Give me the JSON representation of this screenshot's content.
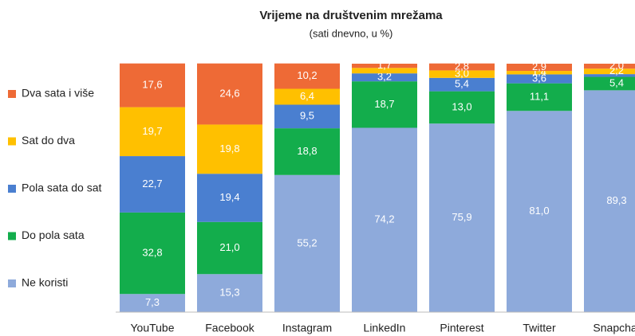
{
  "chart_data": {
    "type": "stacked_bar",
    "title": "Vrijeme na društvenim mrežama",
    "subtitle": "(sati dnevno, u %)",
    "categories": [
      "YouTube",
      "Facebook",
      "Instagram",
      "LinkedIn",
      "Pinterest",
      "Twitter",
      "Snapchat"
    ],
    "ylim": [
      0,
      100
    ],
    "legend": "left",
    "series": [
      {
        "name": "Ne koristi",
        "color": "#8eaadb",
        "values": [
          7.3,
          15.3,
          55.2,
          74.2,
          75.9,
          81.0,
          89.3
        ],
        "value_labels": [
          "7,3",
          "15,3",
          "55,2",
          "74,2",
          "75,9",
          "81,0",
          "89,3"
        ]
      },
      {
        "name": "Do pola sata",
        "color": "#13ad4c",
        "values": [
          32.8,
          21.0,
          18.8,
          18.7,
          13.0,
          11.1,
          5.4
        ],
        "value_labels": [
          "32,8",
          "21,0",
          "18,8",
          "18,7",
          "13,0",
          "11,1",
          "5,4"
        ]
      },
      {
        "name": "Pola sata do sat",
        "color": "#4a7fd0",
        "values": [
          22.7,
          19.4,
          9.5,
          3.2,
          5.4,
          3.6,
          1.1
        ],
        "value_labels": [
          "22,7",
          "19,4",
          "9,5",
          "3,2",
          "5,4",
          "3,6",
          null
        ]
      },
      {
        "name": "Sat do dva",
        "color": "#ffc000",
        "values": [
          19.7,
          19.8,
          6.4,
          2.2,
          3.0,
          1.4,
          2.2
        ],
        "value_labels": [
          "19,7",
          "19,8",
          "6,4",
          null,
          "3,0",
          "1,4",
          "2,2"
        ]
      },
      {
        "name": "Dva sata i više",
        "color": "#ee6a36",
        "values": [
          17.6,
          24.6,
          10.2,
          1.7,
          2.8,
          2.9,
          2.0
        ],
        "value_labels": [
          "17,6",
          "24,6",
          "10,2",
          "1,7",
          "2,8",
          "2,9",
          "2,0"
        ]
      }
    ]
  }
}
